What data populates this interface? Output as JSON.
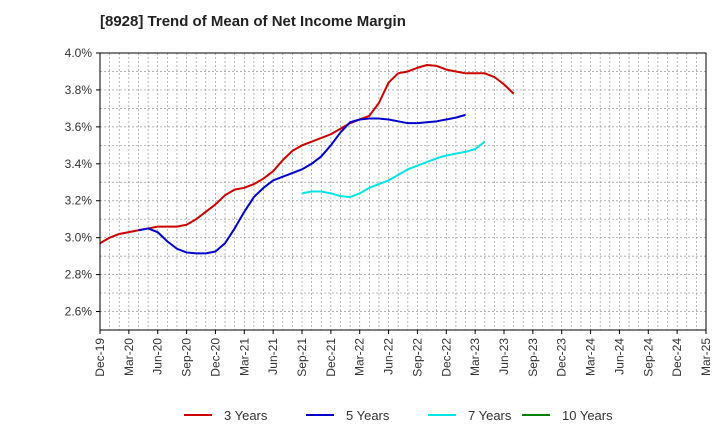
{
  "chart_data": {
    "type": "line",
    "title": "[8928]  Trend of Mean of Net Income Margin",
    "xlabel": "",
    "ylabel": "",
    "ylim": [
      2.5,
      4.0
    ],
    "y_ticks": [
      2.6,
      2.8,
      3.0,
      3.2,
      3.4,
      3.6,
      3.8,
      4.0
    ],
    "y_tick_labels": [
      "2.6%",
      "2.8%",
      "3.0%",
      "3.2%",
      "3.4%",
      "3.6%",
      "3.8%",
      "4.0%"
    ],
    "x_tick_labels": [
      "Dec-19",
      "Mar-20",
      "Jun-20",
      "Sep-20",
      "Dec-20",
      "Mar-21",
      "Jun-21",
      "Sep-21",
      "Dec-21",
      "Mar-22",
      "Jun-22",
      "Sep-22",
      "Dec-22",
      "Mar-23",
      "Jun-23",
      "Sep-23",
      "Dec-23",
      "Mar-24",
      "Jun-24",
      "Sep-24",
      "Dec-24",
      "Mar-25"
    ],
    "grid": true,
    "legend_position": "bottom",
    "series": [
      {
        "name": "3 Years",
        "color": "#cc0000",
        "start_index": 0,
        "values": [
          2.97,
          3.0,
          3.02,
          3.03,
          3.04,
          3.05,
          3.06,
          3.06,
          3.06,
          3.07,
          3.1,
          3.14,
          3.18,
          3.23,
          3.26,
          3.27,
          3.29,
          3.32,
          3.36,
          3.42,
          3.47,
          3.5,
          3.52,
          3.54,
          3.56,
          3.59,
          3.62,
          3.64,
          3.66,
          3.73,
          3.84,
          3.89,
          3.9,
          3.92,
          3.935,
          3.93,
          3.91,
          3.9,
          3.89,
          3.89,
          3.89,
          3.87,
          3.83,
          3.78
        ]
      },
      {
        "name": "5 Years",
        "color": "#0000cc",
        "start_index": 4,
        "values": [
          3.04,
          3.05,
          3.03,
          2.98,
          2.94,
          2.92,
          2.915,
          2.915,
          2.925,
          2.97,
          3.05,
          3.14,
          3.22,
          3.27,
          3.31,
          3.33,
          3.35,
          3.37,
          3.4,
          3.44,
          3.5,
          3.57,
          3.625,
          3.64,
          3.645,
          3.645,
          3.64,
          3.63,
          3.62,
          3.62,
          3.625,
          3.63,
          3.64,
          3.65,
          3.665
        ]
      },
      {
        "name": "7 Years",
        "color": "#00e5e5",
        "start_index": 21,
        "values": [
          3.24,
          3.25,
          3.25,
          3.24,
          3.225,
          3.22,
          3.24,
          3.27,
          3.29,
          3.31,
          3.34,
          3.37,
          3.39,
          3.41,
          3.43,
          3.445,
          3.455,
          3.465,
          3.48,
          3.52
        ]
      },
      {
        "name": "10 Years",
        "color": "#008000",
        "start_index": 0,
        "values": []
      }
    ]
  }
}
